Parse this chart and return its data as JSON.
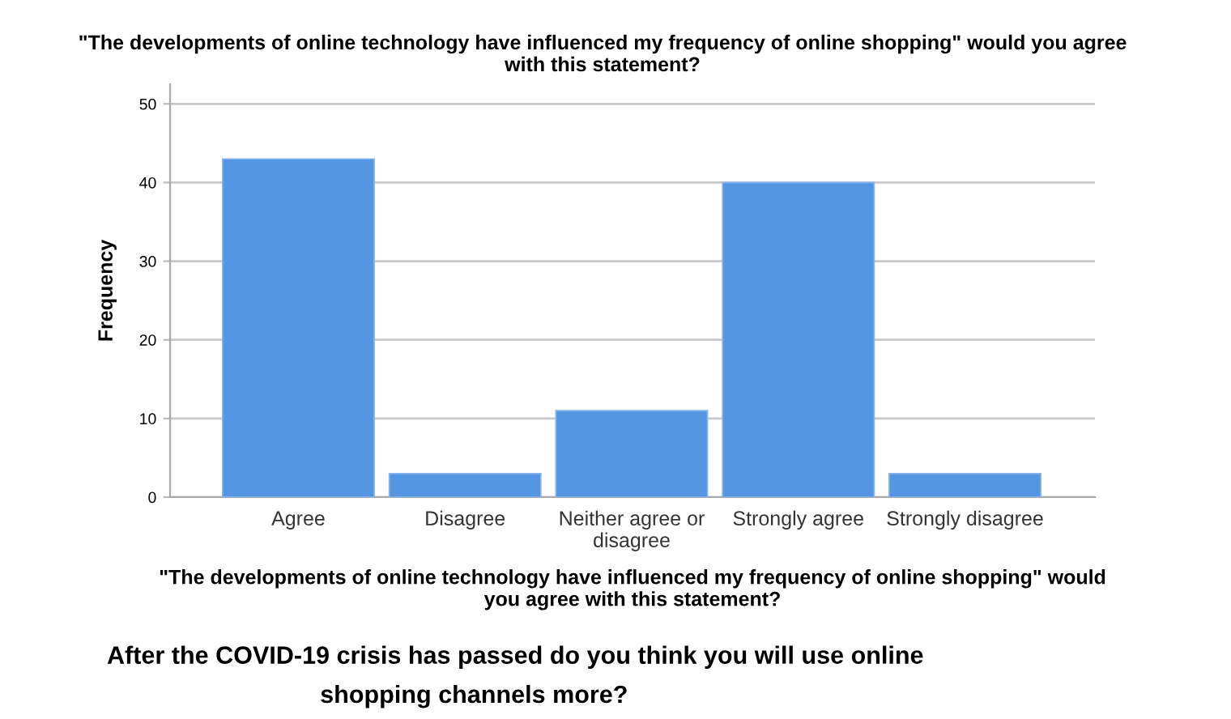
{
  "chart_data": {
    "type": "bar",
    "title": "\"The developments of online technology have influenced my frequency of online shopping\" would you agree\nwith this statement?",
    "xlabel": "\"The developments of online technology have influenced my frequency of online shopping\" would\nyou agree with this statement?",
    "ylabel": "Frequency",
    "categories": [
      "Agree",
      "Disagree",
      "Neither agree or\ndisagree",
      "Strongly agree",
      "Strongly disagree"
    ],
    "values": [
      43,
      3,
      11,
      40,
      3
    ],
    "color": "#5596e3",
    "ylim": [
      0,
      52.5
    ],
    "yticks": [
      0,
      10,
      20,
      30,
      40,
      50
    ],
    "grid": "y",
    "annotations": [
      "After the COVID-19 crisis has passed do you think you will use online\n                               shopping channels more?"
    ]
  }
}
